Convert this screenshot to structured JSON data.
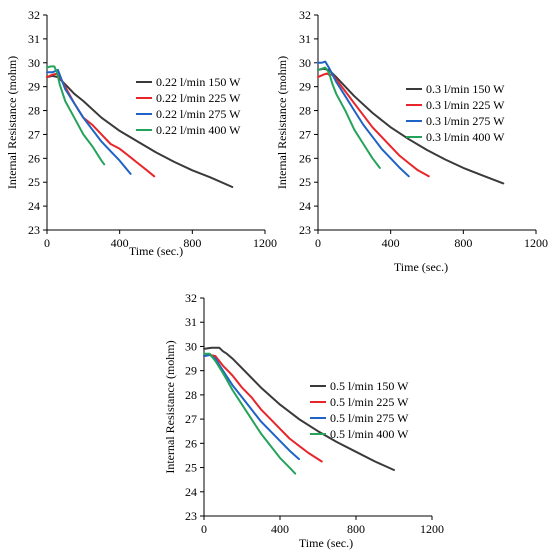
{
  "chart_data": [
    {
      "type": "line",
      "title": "",
      "xlabel": "Time (sec.)",
      "ylabel": "Internal Resistance (mohm)",
      "xlim": [
        0,
        1200
      ],
      "ylim": [
        23,
        32
      ],
      "xticks": [
        "0",
        "400",
        "800",
        "1200"
      ],
      "yticks": [
        "23",
        "24",
        "25",
        "26",
        "27",
        "28",
        "29",
        "30",
        "31",
        "32"
      ],
      "grid": false,
      "legend_position": "right",
      "series": [
        {
          "name": "0.22 l/min 150 W",
          "color": "#3a3a3a",
          "x": [
            0,
            30,
            60,
            100,
            150,
            200,
            300,
            400,
            500,
            600,
            700,
            800,
            900,
            1020
          ],
          "y": [
            29.4,
            29.45,
            29.4,
            29.1,
            28.7,
            28.4,
            27.7,
            27.15,
            26.7,
            26.25,
            25.85,
            25.5,
            25.2,
            24.8
          ]
        },
        {
          "name": "0.22 l/min 225 W",
          "color": "#e8262a",
          "x": [
            0,
            30,
            60,
            100,
            150,
            200,
            250,
            300,
            350,
            400,
            450,
            500,
            550,
            590
          ],
          "y": [
            29.4,
            29.5,
            29.55,
            29.0,
            28.3,
            27.7,
            27.4,
            27.0,
            26.6,
            26.4,
            26.1,
            25.8,
            25.5,
            25.25
          ]
        },
        {
          "name": "0.22 l/min 275 W",
          "color": "#1f63c6",
          "x": [
            0,
            30,
            60,
            100,
            150,
            200,
            250,
            300,
            350,
            400,
            460
          ],
          "y": [
            29.6,
            29.6,
            29.7,
            28.9,
            28.3,
            27.7,
            27.2,
            26.7,
            26.3,
            25.9,
            25.35
          ]
        },
        {
          "name": "0.22 l/min 400 W",
          "color": "#25a35a",
          "x": [
            0,
            20,
            40,
            55,
            70,
            100,
            150,
            200,
            250,
            300,
            315
          ],
          "y": [
            29.8,
            29.85,
            29.85,
            29.6,
            29.1,
            28.4,
            27.7,
            27.0,
            26.5,
            25.9,
            25.75
          ]
        }
      ]
    },
    {
      "type": "line",
      "title": "",
      "xlabel": "Time (sec.)",
      "ylabel": "Internal Resistance (mohm)",
      "xlim": [
        0,
        1200
      ],
      "ylim": [
        23,
        32
      ],
      "xticks": [
        "0",
        "400",
        "800",
        "1200"
      ],
      "yticks": [
        "23",
        "24",
        "25",
        "26",
        "27",
        "28",
        "29",
        "30",
        "31",
        "32"
      ],
      "grid": false,
      "legend_position": "right",
      "series": [
        {
          "name": "0.3 l/min 150 W",
          "color": "#3a3a3a",
          "x": [
            0,
            30,
            60,
            100,
            150,
            200,
            300,
            400,
            500,
            600,
            700,
            800,
            900,
            1020
          ],
          "y": [
            29.7,
            29.75,
            29.7,
            29.4,
            29.0,
            28.6,
            27.9,
            27.3,
            26.8,
            26.35,
            25.95,
            25.6,
            25.3,
            24.95
          ]
        },
        {
          "name": "0.3 l/min 225 W",
          "color": "#e8262a",
          "x": [
            0,
            30,
            50,
            60,
            80,
            100,
            150,
            200,
            250,
            300,
            350,
            400,
            450,
            500,
            550,
            610
          ],
          "y": [
            29.4,
            29.5,
            29.55,
            29.5,
            29.5,
            29.3,
            28.8,
            28.3,
            27.8,
            27.3,
            26.9,
            26.5,
            26.1,
            25.8,
            25.5,
            25.25
          ]
        },
        {
          "name": "0.3 l/min 275 W",
          "color": "#1f63c6",
          "x": [
            0,
            20,
            40,
            60,
            100,
            150,
            200,
            250,
            300,
            350,
            400,
            450,
            500
          ],
          "y": [
            30.0,
            30.0,
            30.05,
            29.8,
            29.2,
            28.6,
            28.0,
            27.4,
            26.9,
            26.4,
            26.0,
            25.6,
            25.25
          ]
        },
        {
          "name": "0.3 l/min 400 W",
          "color": "#25a35a",
          "x": [
            0,
            20,
            40,
            60,
            80,
            100,
            150,
            200,
            250,
            300,
            340
          ],
          "y": [
            29.7,
            29.75,
            29.8,
            29.6,
            29.1,
            28.7,
            28.0,
            27.2,
            26.6,
            26.0,
            25.6
          ]
        }
      ]
    },
    {
      "type": "line",
      "title": "",
      "xlabel": "Time (sec.)",
      "ylabel": "Internal Resistance (mohm)",
      "xlim": [
        0,
        1200
      ],
      "ylim": [
        23,
        32
      ],
      "xticks": [
        "0",
        "400",
        "800",
        "1200"
      ],
      "yticks": [
        "23",
        "24",
        "25",
        "26",
        "27",
        "28",
        "29",
        "30",
        "31",
        "32"
      ],
      "grid": false,
      "legend_position": "right",
      "series": [
        {
          "name": "0.5 l/min 150 W",
          "color": "#3a3a3a",
          "x": [
            0,
            40,
            80,
            100,
            120,
            150,
            200,
            300,
            400,
            500,
            600,
            700,
            800,
            900,
            1000
          ],
          "y": [
            29.9,
            29.95,
            29.95,
            29.8,
            29.7,
            29.5,
            29.1,
            28.3,
            27.6,
            27.0,
            26.5,
            26.05,
            25.65,
            25.25,
            24.9
          ]
        },
        {
          "name": "0.5 l/min 225 W",
          "color": "#e8262a",
          "x": [
            0,
            30,
            60,
            100,
            150,
            200,
            250,
            300,
            350,
            400,
            450,
            500,
            550,
            620
          ],
          "y": [
            29.6,
            29.65,
            29.6,
            29.2,
            28.8,
            28.3,
            27.9,
            27.4,
            27.0,
            26.6,
            26.2,
            25.9,
            25.6,
            25.25
          ]
        },
        {
          "name": "0.5 l/min 275 W",
          "color": "#1f63c6",
          "x": [
            0,
            30,
            60,
            100,
            150,
            200,
            250,
            300,
            350,
            400,
            450,
            500
          ],
          "y": [
            29.6,
            29.65,
            29.5,
            29.0,
            28.4,
            27.9,
            27.4,
            26.9,
            26.5,
            26.1,
            25.7,
            25.35
          ]
        },
        {
          "name": "0.5 l/min 400 W",
          "color": "#25a35a",
          "x": [
            0,
            30,
            60,
            100,
            150,
            200,
            250,
            300,
            350,
            400,
            450,
            480
          ],
          "y": [
            29.7,
            29.7,
            29.4,
            28.9,
            28.2,
            27.6,
            27.0,
            26.4,
            25.9,
            25.4,
            25.0,
            24.75
          ]
        }
      ]
    }
  ]
}
